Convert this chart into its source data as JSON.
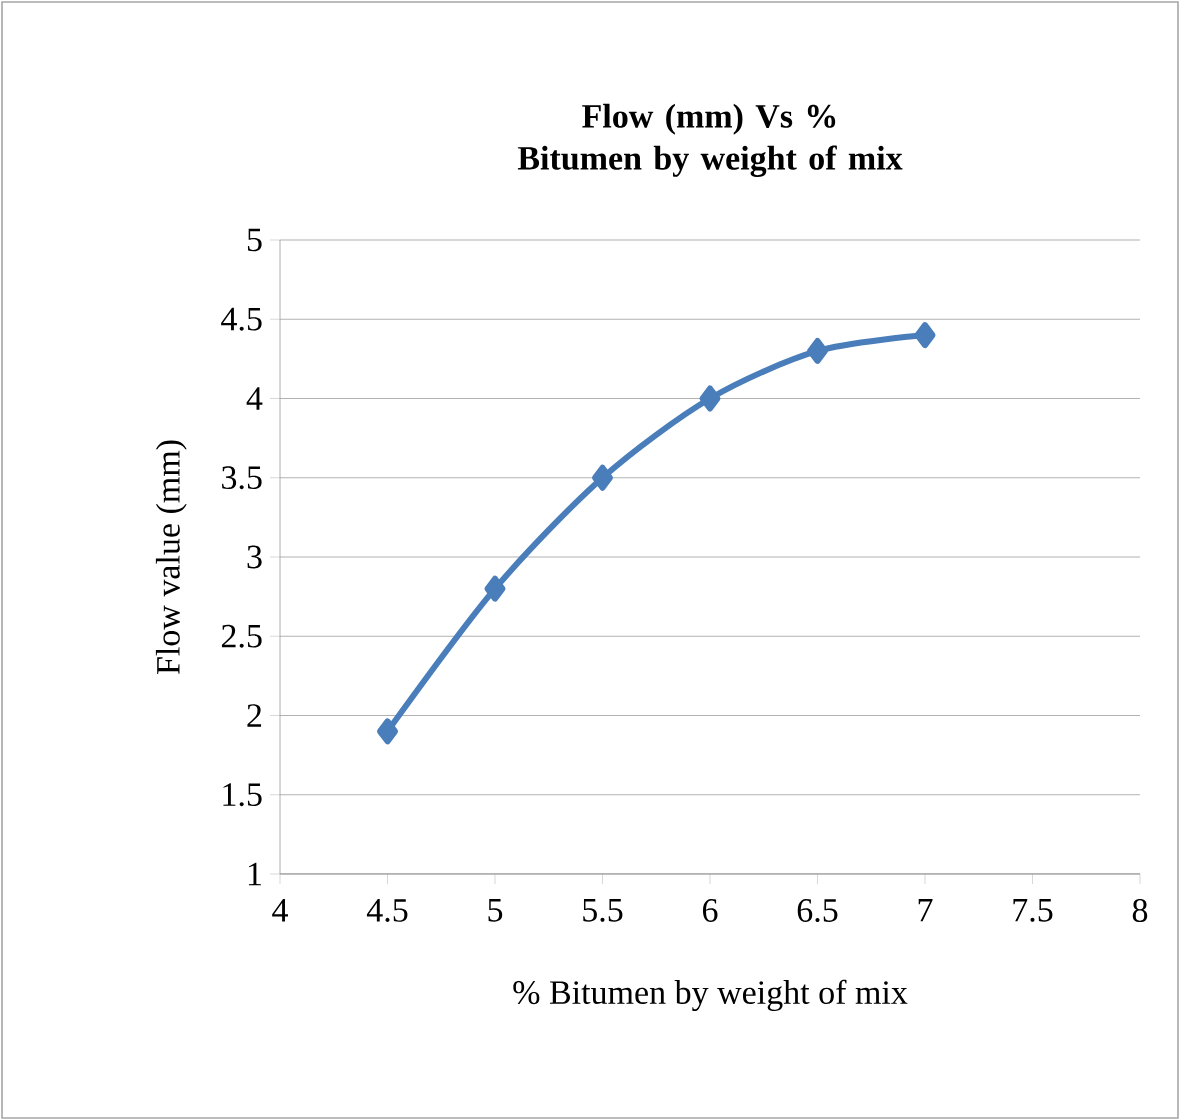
{
  "chart_data": {
    "type": "line",
    "title": "Flow (mm) Vs % Bitumen by weight of mix",
    "xlabel": "% Bitumen by weight of mix",
    "ylabel": "Flow value (mm)",
    "x": [
      4.5,
      5,
      5.5,
      6,
      6.5,
      7
    ],
    "values": [
      1.9,
      2.8,
      3.5,
      4.0,
      4.3,
      4.4
    ],
    "color": "#4a7ebb",
    "marker": "diamond",
    "line_style": "solid",
    "grid": "y",
    "xlim": [
      4,
      8
    ],
    "xticks": [
      4,
      4.5,
      5,
      5.5,
      6,
      6.5,
      7,
      7.5,
      8
    ],
    "ylim": [
      1,
      5
    ],
    "yticks": [
      1,
      1.5,
      2,
      2.5,
      3,
      3.5,
      4,
      4.5,
      5
    ]
  }
}
